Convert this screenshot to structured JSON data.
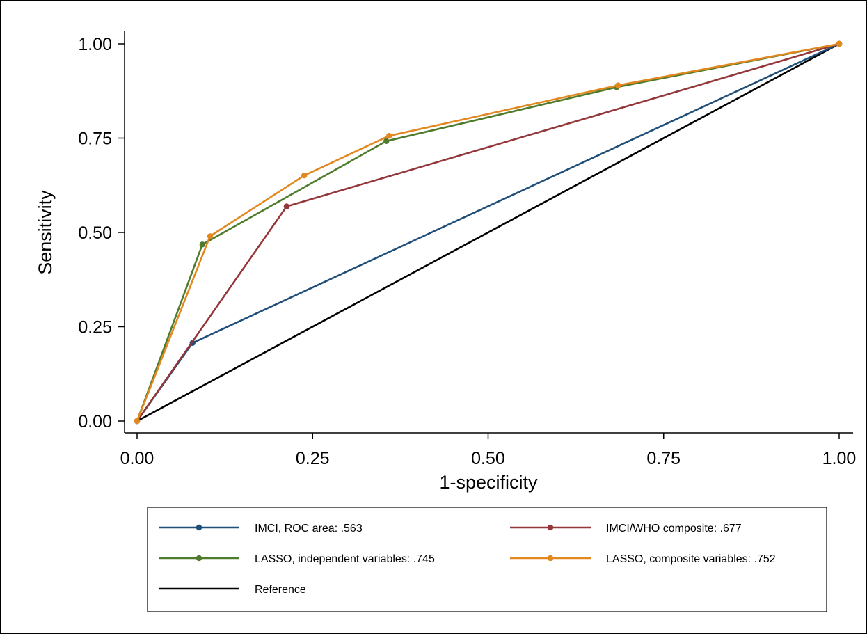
{
  "chart_data": {
    "type": "line",
    "xlabel": "1-specificity",
    "ylabel": "Sensitivity",
    "xlim": [
      0,
      1
    ],
    "ylim": [
      0,
      1
    ],
    "xticks": [
      "0.00",
      "0.25",
      "0.50",
      "0.75",
      "1.00"
    ],
    "yticks": [
      "0.00",
      "0.25",
      "0.50",
      "0.75",
      "1.00"
    ],
    "grid": false,
    "legend_position": "bottom",
    "series": [
      {
        "name": "IMCI, ROC area: .563",
        "color": "#1f4e79",
        "markers": true,
        "points": [
          [
            0,
            0
          ],
          [
            0.079,
            0.207
          ],
          [
            1,
            1
          ]
        ]
      },
      {
        "name": "IMCI/WHO composite: .677",
        "color": "#93373a",
        "markers": true,
        "points": [
          [
            0,
            0
          ],
          [
            0.213,
            0.569
          ],
          [
            1,
            1
          ]
        ]
      },
      {
        "name": "LASSO, independent variables: .745",
        "color": "#4f7c2c",
        "markers": true,
        "points": [
          [
            0,
            0
          ],
          [
            0.093,
            0.468
          ],
          [
            0.355,
            0.742
          ],
          [
            0.683,
            0.885
          ],
          [
            1,
            1
          ]
        ]
      },
      {
        "name": "LASSO, composite variables: .752",
        "color": "#e3871f",
        "markers": true,
        "points": [
          [
            0,
            0
          ],
          [
            0.104,
            0.49
          ],
          [
            0.238,
            0.651
          ],
          [
            0.359,
            0.756
          ],
          [
            0.685,
            0.89
          ],
          [
            1,
            1
          ]
        ]
      },
      {
        "name": "Reference",
        "color": "#000000",
        "markers": false,
        "points": [
          [
            0,
            0
          ],
          [
            1,
            1
          ]
        ]
      }
    ]
  }
}
